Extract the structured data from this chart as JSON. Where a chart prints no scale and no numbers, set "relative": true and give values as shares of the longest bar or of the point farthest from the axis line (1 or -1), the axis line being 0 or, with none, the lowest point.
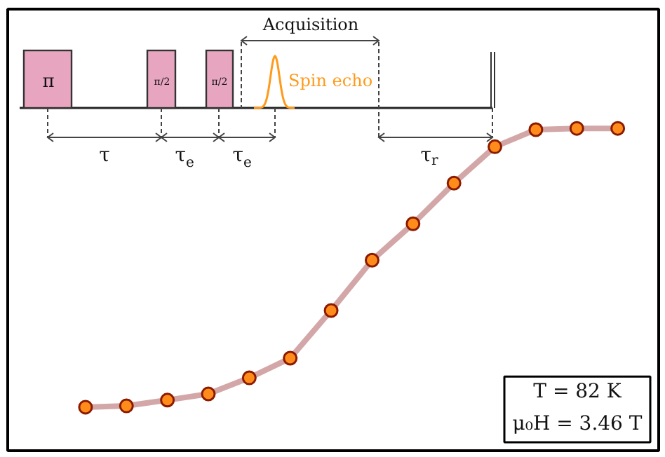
{
  "chart_data": {
    "type": "line",
    "relative": true,
    "tick_labels": false,
    "grid": false,
    "marker": "circle",
    "categories": [
      null,
      null,
      null,
      null,
      null,
      null,
      null,
      null,
      null,
      null,
      null,
      null,
      null,
      null
    ],
    "series": [
      {
        "color": "#c48a8a",
        "values": [
          0.135,
          0.139,
          0.157,
          0.176,
          0.226,
          0.287,
          0.435,
          0.591,
          0.704,
          0.83,
          0.943,
          0.996,
          1.0,
          1.0
        ]
      }
    ],
    "annotations": [
      "Acquisition",
      "π",
      "π/2",
      "π/2",
      "Spin echo",
      "τ",
      "τ$_{e}$",
      "τ$_{e}$",
      "τ$_{r}$",
      "T = 82 K",
      "μ₀H = 3.46 T"
    ]
  }
}
